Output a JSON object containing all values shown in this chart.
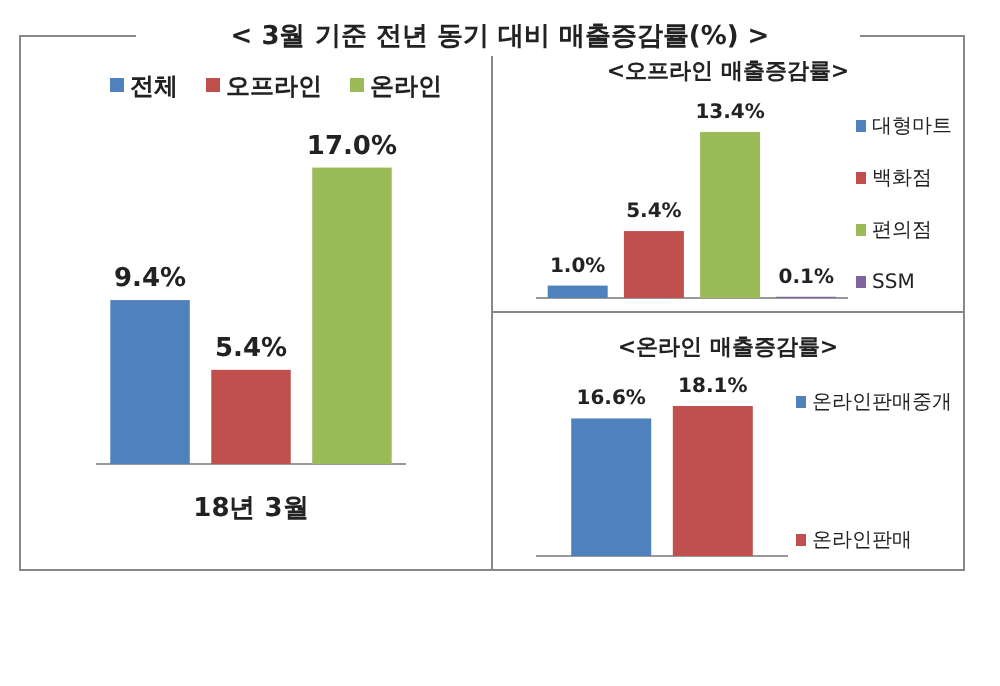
{
  "chart_data": [
    {
      "type": "bar",
      "title": "< 3월 기준 전년 동기 대비 매출증감률(%) >",
      "categories": [
        null
      ],
      "xlabel": "18년 3월",
      "legend": "top",
      "series": [
        {
          "name": "전체",
          "color": "#4f81bd",
          "values": [
            9.4
          ],
          "value_labels": [
            "9.4%"
          ]
        },
        {
          "name": "오프라인",
          "color": "#c0504d",
          "values": [
            5.4
          ],
          "value_labels": [
            "5.4%"
          ]
        },
        {
          "name": "온라인",
          "color": "#9bbb59",
          "values": [
            17.0
          ],
          "value_labels": [
            "17.0%"
          ]
        }
      ]
    },
    {
      "type": "bar",
      "title": "<오프라인 매출증감률>",
      "categories": [
        null
      ],
      "legend": "right",
      "series": [
        {
          "name": "대형마트",
          "color": "#4f81bd",
          "values": [
            1.0
          ],
          "value_labels": [
            "1.0%"
          ]
        },
        {
          "name": "백화점",
          "color": "#c0504d",
          "values": [
            5.4
          ],
          "value_labels": [
            "5.4%"
          ]
        },
        {
          "name": "편의점",
          "color": "#9bbb59",
          "values": [
            13.4
          ],
          "value_labels": [
            "13.4%"
          ]
        },
        {
          "name": "SSM",
          "color": "#8064a2",
          "values": [
            0.1
          ],
          "value_labels": [
            "0.1%"
          ]
        }
      ]
    },
    {
      "type": "bar",
      "title": "<온라인 매출증감률>",
      "categories": [
        null
      ],
      "legend": "right",
      "series": [
        {
          "name": "온라인판매중개",
          "color": "#4f81bd",
          "values": [
            16.6
          ],
          "value_labels": [
            "16.6%"
          ]
        },
        {
          "name": "온라인판매",
          "color": "#c0504d",
          "values": [
            18.1
          ],
          "value_labels": [
            "18.1%"
          ]
        }
      ]
    }
  ]
}
